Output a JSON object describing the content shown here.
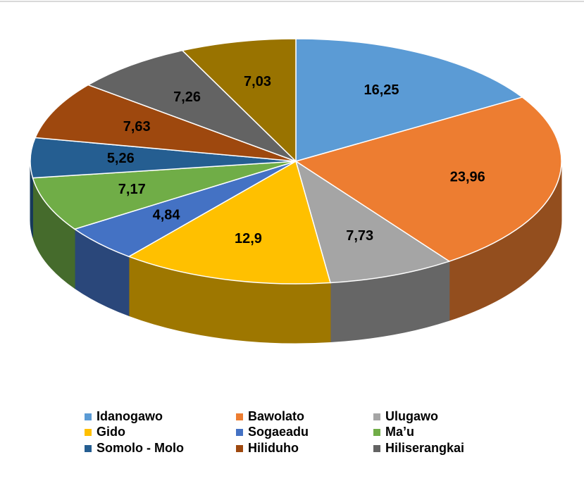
{
  "chart_data": {
    "type": "pie3d",
    "categories": [
      "Idanogawo",
      "Bawolato",
      "Ulugawo",
      "Gido",
      "Sogaeadu",
      "Ma’u",
      "Somolo - Molo",
      "Hiliduho",
      "Hiliserangkai",
      null
    ],
    "values": [
      16.25,
      23.96,
      7.73,
      12.9,
      4.84,
      7.17,
      5.26,
      7.63,
      7.26,
      7.03
    ],
    "value_labels": [
      "16,25",
      "23,96",
      "7,73",
      "12,9",
      "4,84",
      "7,17",
      "5,26",
      "7,63",
      "7,26",
      "7,03"
    ],
    "colors": [
      "#5b9bd5",
      "#ed7d31",
      "#a5a5a5",
      "#ffc000",
      "#4472c4",
      "#70ad47",
      "#255e91",
      "#9e480e",
      "#636363",
      "#997300"
    ],
    "legend": "bottom"
  }
}
